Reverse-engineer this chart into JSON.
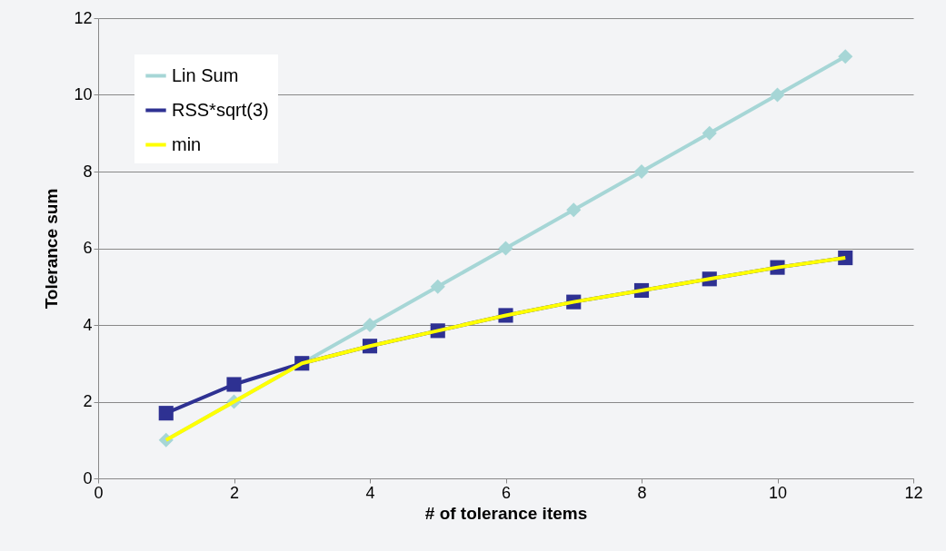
{
  "chart_data": {
    "type": "line",
    "xlabel": "# of tolerance items",
    "ylabel": "Tolerance sum",
    "x": [
      1,
      2,
      3,
      4,
      5,
      6,
      7,
      8,
      9,
      10,
      11
    ],
    "series": [
      {
        "name": "Lin Sum",
        "color": "#a6d6d6",
        "marker": "diamond",
        "values": [
          1,
          2,
          3,
          4,
          5,
          6,
          7,
          8,
          9,
          10,
          11
        ]
      },
      {
        "name": "RSS*sqrt(3)",
        "color": "#2e3192",
        "marker": "square",
        "values": [
          1.7,
          2.45,
          3.0,
          3.45,
          3.85,
          4.25,
          4.6,
          4.9,
          5.2,
          5.5,
          5.75
        ]
      },
      {
        "name": "min",
        "color": "#ffff00",
        "marker": "none",
        "values": [
          1.0,
          2.0,
          3.0,
          3.45,
          3.85,
          4.25,
          4.6,
          4.9,
          5.2,
          5.5,
          5.75
        ]
      }
    ],
    "xlim": [
      0,
      12
    ],
    "xticks": [
      0,
      2,
      4,
      6,
      8,
      10,
      12
    ],
    "ylim": [
      0,
      12
    ],
    "yticks": [
      0,
      2,
      4,
      6,
      8,
      10,
      12
    ],
    "grid": "y",
    "legend": "top left",
    "line_style": "solid"
  }
}
